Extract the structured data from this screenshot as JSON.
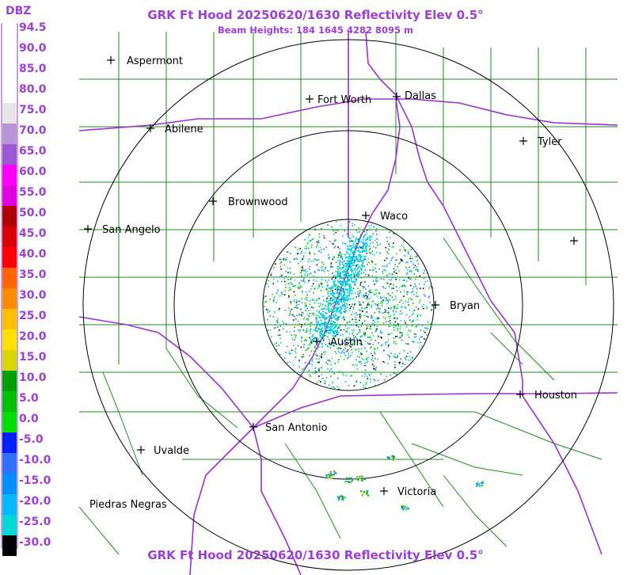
{
  "header": {
    "title": "GRK Ft Hood 20250620/1630 Reflectivity Elev 0.5°",
    "subtitle": "Beam Heights: 184 1645 4282 8095 m"
  },
  "footer": {
    "title": "GRK Ft Hood 20250620/1630 Reflectivity Elev 0.5°"
  },
  "legend": {
    "unit": "DBZ",
    "ticks": [
      "94.5",
      "90.0",
      "85.0",
      "80.0",
      "75.0",
      "70.0",
      "65.0",
      "60.0",
      "55.0",
      "50.0",
      "45.0",
      "40.0",
      "35.0",
      "30.0",
      "25.0",
      "20.0",
      "15.0",
      "10.0",
      "5.0",
      "0.0",
      "-5.0",
      "-10.0",
      "-15.0",
      "-20.0",
      "-25.0",
      "-30.0"
    ],
    "colors": [
      "#ffffff",
      "#ffffff",
      "#ffffff",
      "#ffffff",
      "#e6e6e6",
      "#b994d9",
      "#9b59d6",
      "#ff00ff",
      "#e000e0",
      "#b00000",
      "#d80000",
      "#ff0000",
      "#ff6600",
      "#ff8c00",
      "#ffc000",
      "#ffe000",
      "#d8d800",
      "#00a000",
      "#00c000",
      "#00e000",
      "#0020ff",
      "#3070ff",
      "#0090ff",
      "#00b8ff",
      "#00d8d8",
      "#000000"
    ]
  },
  "cities": [
    {
      "name": "Aspermont"
    },
    {
      "name": "Fort Worth"
    },
    {
      "name": "Dallas"
    },
    {
      "name": "Abilene"
    },
    {
      "name": "Tyler"
    },
    {
      "name": "Brownwood"
    },
    {
      "name": "Waco"
    },
    {
      "name": "San Angelo"
    },
    {
      "name": "Bryan"
    },
    {
      "name": "Austin"
    },
    {
      "name": "Houston"
    },
    {
      "name": "San Antonio"
    },
    {
      "name": "Uvalde"
    },
    {
      "name": "Victoria"
    },
    {
      "name": "Piedras Negras"
    },
    {
      "name": ""
    }
  ],
  "colors": {
    "title": "#9b3fd6",
    "county_lines": "#1f8a1f",
    "highways": "#9b30d0",
    "range_rings": "#000000"
  }
}
